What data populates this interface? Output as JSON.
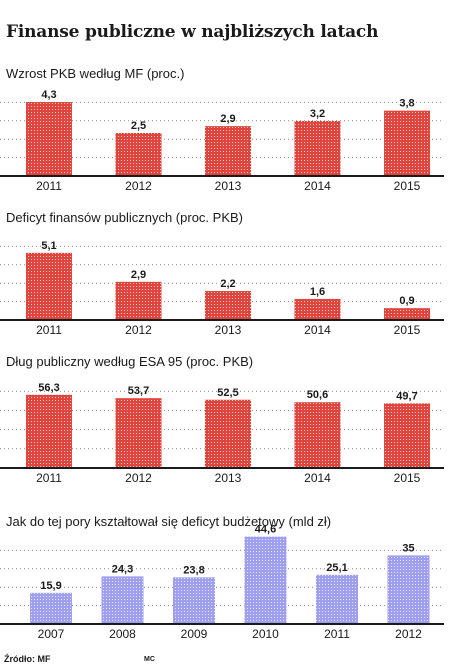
{
  "title": "Finanse publiczne w najbliższych latach",
  "source": "Źródło: MF",
  "credit": "MC",
  "colors": {
    "red": "#e0443c",
    "blue": "#9f9ff0",
    "baseline": "#1a1a1a",
    "dots": "#888888"
  },
  "chart_data": [
    {
      "type": "bar",
      "title": "Wzrost PKB według MF (proc.)",
      "categories": [
        "2011",
        "2012",
        "2013",
        "2014",
        "2015"
      ],
      "values": [
        4.3,
        2.5,
        2.9,
        3.2,
        3.8
      ],
      "labels": [
        "4,3",
        "2,5",
        "2,9",
        "3,2",
        "3,8"
      ],
      "ylim": [
        0,
        5
      ],
      "grid": true,
      "color": "red"
    },
    {
      "type": "bar",
      "title": "Deficyt finansów publicznych (proc. PKB)",
      "categories": [
        "2011",
        "2012",
        "2013",
        "2014",
        "2015"
      ],
      "values": [
        5.1,
        2.9,
        2.2,
        1.6,
        0.9
      ],
      "labels": [
        "5,1",
        "2,9",
        "2,2",
        "1,6",
        "0,9"
      ],
      "ylim": [
        0,
        6
      ],
      "grid": true,
      "color": "red"
    },
    {
      "type": "bar",
      "title": "Dług publiczny według ESA 95 (proc. PKB)",
      "categories": [
        "2011",
        "2012",
        "2013",
        "2014",
        "2015"
      ],
      "values": [
        56.3,
        53.7,
        52.5,
        50.6,
        49.7
      ],
      "labels": [
        "56,3",
        "53,7",
        "52,5",
        "50,6",
        "49,7"
      ],
      "ylim": [
        0,
        60
      ],
      "grid": true,
      "color": "red"
    },
    {
      "type": "bar",
      "title": "Jak do tej pory kształtował się deficyt budżetowy (mld zł)",
      "categories": [
        "2007",
        "2008",
        "2009",
        "2010",
        "2011",
        "2012"
      ],
      "values": [
        15.9,
        24.3,
        23.8,
        44.6,
        25.1,
        35
      ],
      "labels": [
        "15,9",
        "24,3",
        "23,8",
        "44,6",
        "25,1",
        "35"
      ],
      "ylim": [
        0,
        50
      ],
      "grid": true,
      "color": "blue"
    }
  ]
}
